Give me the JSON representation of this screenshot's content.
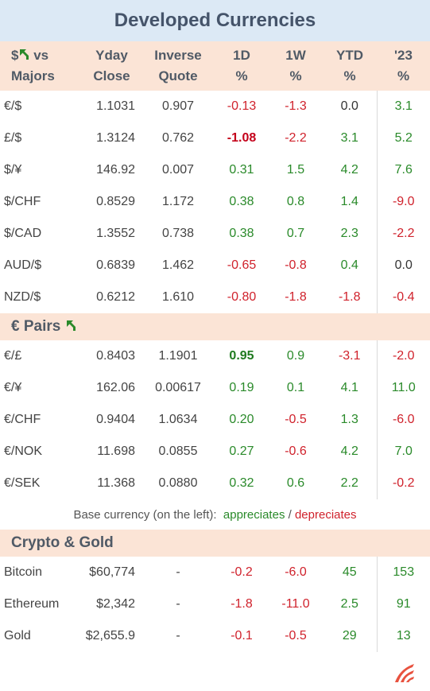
{
  "title": "Developed Currencies",
  "colors": {
    "positive": "#2a8a2a",
    "negative": "#d0222c",
    "header_bg": "#fbe4d6",
    "title_bg": "#dce9f5"
  },
  "header": {
    "col0_line1": "$",
    "col0_line1b": "vs",
    "col0_line2": "Majors",
    "col1_line1": "Yday",
    "col1_line2": "Close",
    "col2_line1": "Inverse",
    "col2_line2": "Quote",
    "col3_line1": "1D",
    "col3_line2": "%",
    "col4_line1": "1W",
    "col4_line2": "%",
    "col5_line1": "YTD",
    "col5_line2": "%",
    "col6_line1": "'23",
    "col6_line2": "%",
    "arrow_icon": "up-left-arrow-icon"
  },
  "majors": [
    {
      "pair": "€/$",
      "yday": "1.1031",
      "inv": "0.907",
      "d1": "-0.13",
      "w1": "-1.3",
      "ytd": "0.0",
      "y23": "3.1"
    },
    {
      "pair": "£/$",
      "yday": "1.3124",
      "inv": "0.762",
      "d1": "-1.08",
      "w1": "-2.2",
      "ytd": "3.1",
      "y23": "5.2"
    },
    {
      "pair": "$/¥",
      "yday": "146.92",
      "inv": "0.007",
      "d1": "0.31",
      "w1": "1.5",
      "ytd": "4.2",
      "y23": "7.6"
    },
    {
      "pair": "$/CHF",
      "yday": "0.8529",
      "inv": "1.172",
      "d1": "0.38",
      "w1": "0.8",
      "ytd": "1.4",
      "y23": "-9.0"
    },
    {
      "pair": "$/CAD",
      "yday": "1.3552",
      "inv": "0.738",
      "d1": "0.38",
      "w1": "0.7",
      "ytd": "2.3",
      "y23": "-2.2"
    },
    {
      "pair": "AUD/$",
      "yday": "0.6839",
      "inv": "1.462",
      "d1": "-0.65",
      "w1": "-0.8",
      "ytd": "0.4",
      "y23": "0.0"
    },
    {
      "pair": "NZD/$",
      "yday": "0.6212",
      "inv": "1.610",
      "d1": "-0.80",
      "w1": "-1.8",
      "ytd": "-1.8",
      "y23": "-0.4"
    }
  ],
  "euro_section_label": "€ Pairs",
  "euro_pairs": [
    {
      "pair": "€/£",
      "yday": "0.8403",
      "inv": "1.1901",
      "d1": "0.95",
      "w1": "0.9",
      "ytd": "-3.1",
      "y23": "-2.0"
    },
    {
      "pair": "€/¥",
      "yday": "162.06",
      "inv": "0.00617",
      "d1": "0.19",
      "w1": "0.1",
      "ytd": "4.1",
      "y23": "11.0"
    },
    {
      "pair": "€/CHF",
      "yday": "0.9404",
      "inv": "1.0634",
      "d1": "0.20",
      "w1": "-0.5",
      "ytd": "1.3",
      "y23": "-6.0"
    },
    {
      "pair": "€/NOK",
      "yday": "11.698",
      "inv": "0.0855",
      "d1": "0.27",
      "w1": "-0.6",
      "ytd": "4.2",
      "y23": "7.0"
    },
    {
      "pair": "€/SEK",
      "yday": "11.368",
      "inv": "0.0880",
      "d1": "0.32",
      "w1": "0.6",
      "ytd": "2.2",
      "y23": "-0.2"
    }
  ],
  "note": {
    "prefix": "Base currency (on the left):",
    "up": "appreciates",
    "sep": "/",
    "down": "depreciates"
  },
  "crypto_section_label": "Crypto & Gold",
  "crypto": [
    {
      "pair": "Bitcoin",
      "yday": "$60,774",
      "inv": "-",
      "d1": "-0.2",
      "w1": "-6.0",
      "ytd": "45",
      "y23": "153"
    },
    {
      "pair": "Ethereum",
      "yday": "$2,342",
      "inv": "-",
      "d1": "-1.8",
      "w1": "-11.0",
      "ytd": "2.5",
      "y23": "91"
    },
    {
      "pair": "Gold",
      "yday": "$2,655.9",
      "inv": "-",
      "d1": "-0.1",
      "w1": "-0.5",
      "ytd": "29",
      "y23": "13"
    }
  ],
  "logo_icon": "brand-logo-icon"
}
